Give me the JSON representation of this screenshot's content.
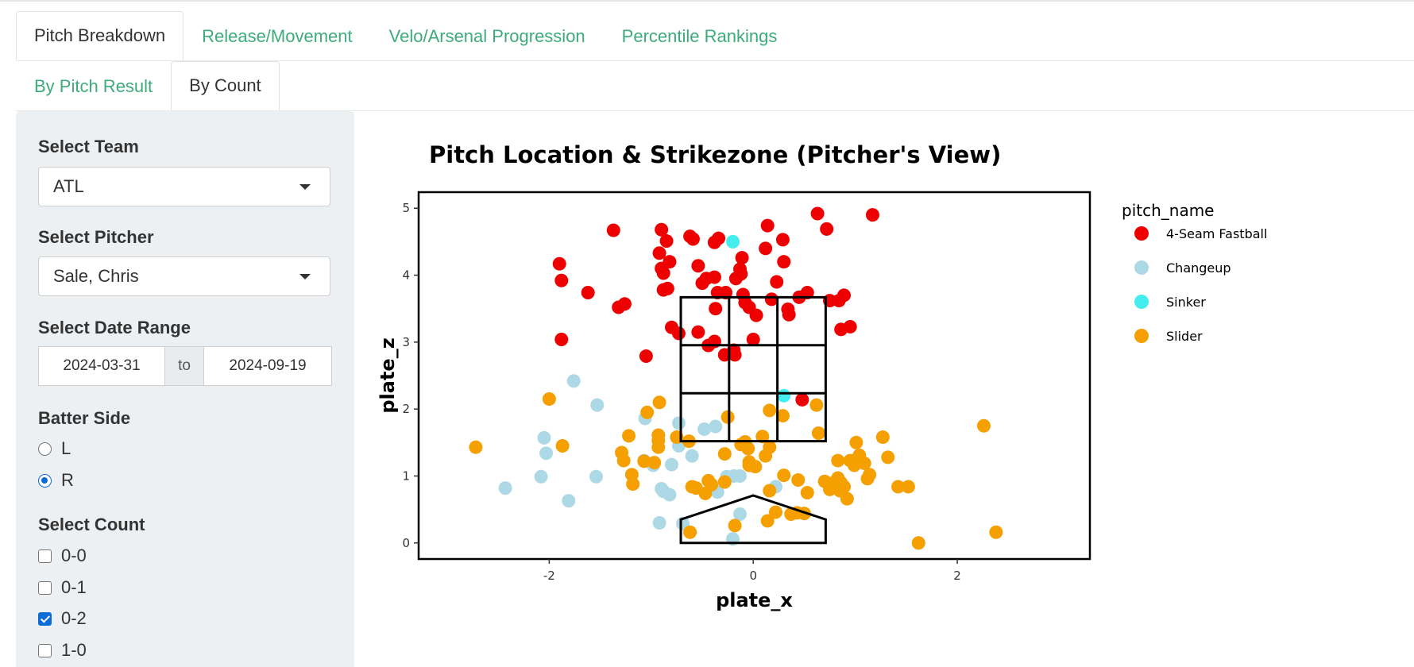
{
  "tabs": {
    "main": [
      "Pitch Breakdown",
      "Release/Movement",
      "Velo/Arsenal Progression",
      "Percentile Rankings"
    ],
    "main_active": 0,
    "sub": [
      "By Pitch Result",
      "By Count"
    ],
    "sub_active": 1
  },
  "sidebar": {
    "team": {
      "label": "Select Team",
      "value": "ATL"
    },
    "pitcher": {
      "label": "Select Pitcher",
      "value": "Sale, Chris"
    },
    "date_range": {
      "label": "Select Date Range",
      "start": "2024-03-31",
      "separator": "to",
      "end": "2024-09-19"
    },
    "batter_side": {
      "label": "Batter Side",
      "options": [
        "L",
        "R"
      ],
      "selected": "R"
    },
    "count": {
      "label": "Select Count",
      "options": [
        {
          "label": "0-0",
          "checked": false
        },
        {
          "label": "0-1",
          "checked": false
        },
        {
          "label": "0-2",
          "checked": true
        },
        {
          "label": "1-0",
          "checked": false
        }
      ]
    }
  },
  "colors": {
    "tab_link": "#3dab7c",
    "sidebar_bg": "#edf0f2",
    "accent": "#0b6cd8"
  },
  "chart_data": {
    "type": "scatter",
    "title": "Pitch Location & Strikezone (Pitcher's View)",
    "xlabel": "plate_x",
    "ylabel": "plate_z",
    "xlim": [
      -3.28,
      3.3
    ],
    "ylim": [
      -0.24,
      5.24
    ],
    "x_ticks": [
      -2,
      0,
      2
    ],
    "y_ticks": [
      0,
      1,
      2,
      3,
      4,
      5
    ],
    "grid": false,
    "legend_title": "pitch_name",
    "legend_position": "right",
    "strike_zone": {
      "x": [
        -0.71,
        0.71
      ],
      "z": [
        1.52,
        3.67
      ]
    },
    "home_plate": [
      [
        -0.71,
        0.0
      ],
      [
        0.71,
        0.0
      ],
      [
        0.71,
        0.35
      ],
      [
        0.0,
        0.71
      ],
      [
        -0.71,
        0.35
      ]
    ],
    "series": [
      {
        "name": "4-Seam Fastball",
        "color": "#ee0000",
        "points": [
          [
            -1.37,
            4.67
          ],
          [
            -1.9,
            4.17
          ],
          [
            -1.88,
            3.92
          ],
          [
            -1.62,
            3.74
          ],
          [
            -1.32,
            3.52
          ],
          [
            -1.26,
            3.57
          ],
          [
            -1.88,
            3.04
          ],
          [
            -1.05,
            2.79
          ],
          [
            -0.9,
            4.68
          ],
          [
            -0.92,
            4.33
          ],
          [
            -0.85,
            4.51
          ],
          [
            -0.88,
            4.03
          ],
          [
            -0.9,
            4.1
          ],
          [
            -0.82,
            4.2
          ],
          [
            -0.88,
            3.78
          ],
          [
            -0.84,
            3.8
          ],
          [
            -0.62,
            4.58
          ],
          [
            -0.59,
            4.54
          ],
          [
            -0.54,
            4.14
          ],
          [
            -0.5,
            3.88
          ],
          [
            -0.46,
            3.95
          ],
          [
            -0.38,
            3.97
          ],
          [
            -0.38,
            4.49
          ],
          [
            -0.34,
            4.55
          ],
          [
            -0.35,
            3.74
          ],
          [
            -0.37,
            3.5
          ],
          [
            -0.27,
            3.74
          ],
          [
            -0.17,
            3.95
          ],
          [
            -0.12,
            4.02
          ],
          [
            -0.13,
            4.09
          ],
          [
            -0.1,
            3.71
          ],
          [
            -0.08,
            3.59
          ],
          [
            -0.11,
            4.26
          ],
          [
            -0.04,
            3.52
          ],
          [
            0.03,
            3.4
          ],
          [
            0.14,
            4.74
          ],
          [
            0.12,
            4.4
          ],
          [
            0.23,
            3.9
          ],
          [
            0.29,
            4.53
          ],
          [
            0.3,
            4.2
          ],
          [
            0.34,
            3.49
          ],
          [
            0.35,
            3.41
          ],
          [
            0.18,
            3.64
          ],
          [
            0.45,
            3.67
          ],
          [
            0.53,
            3.74
          ],
          [
            0.63,
            4.92
          ],
          [
            0.72,
            4.69
          ],
          [
            0.75,
            3.62
          ],
          [
            0.84,
            3.62
          ],
          [
            0.86,
            3.19
          ],
          [
            0.89,
            3.7
          ],
          [
            0.95,
            3.23
          ],
          [
            1.17,
            4.9
          ],
          [
            -0.54,
            3.15
          ],
          [
            -0.8,
            3.22
          ],
          [
            -0.73,
            3.13
          ],
          [
            -0.44,
            2.95
          ],
          [
            -0.38,
            3.01
          ],
          [
            -0.28,
            2.81
          ],
          [
            -0.18,
            2.81
          ],
          [
            -0.19,
            2.88
          ],
          [
            0.0,
            3.04
          ],
          [
            0.48,
            2.14
          ]
        ]
      },
      {
        "name": "Changeup",
        "color": "#add8e6",
        "points": [
          [
            -2.43,
            0.82
          ],
          [
            -2.08,
            0.99
          ],
          [
            -2.05,
            1.57
          ],
          [
            -2.03,
            1.34
          ],
          [
            -1.81,
            0.63
          ],
          [
            -1.76,
            2.42
          ],
          [
            -1.53,
            2.06
          ],
          [
            -1.54,
            0.99
          ],
          [
            -1.06,
            1.86
          ],
          [
            -1.07,
            1.23
          ],
          [
            -0.98,
            1.16
          ],
          [
            -0.92,
            0.3
          ],
          [
            -0.9,
            0.81
          ],
          [
            -0.88,
            0.77
          ],
          [
            -0.82,
            0.72
          ],
          [
            -0.8,
            1.17
          ],
          [
            -0.73,
            1.45
          ],
          [
            -0.73,
            1.79
          ],
          [
            -0.69,
            0.29
          ],
          [
            -0.6,
            1.3
          ],
          [
            -0.48,
            1.7
          ],
          [
            -0.37,
            1.74
          ],
          [
            -0.35,
            0.76
          ],
          [
            -0.26,
            0.99
          ],
          [
            -0.19,
            1.0
          ],
          [
            -0.2,
            0.06
          ],
          [
            -0.13,
            1.0
          ],
          [
            -0.13,
            0.43
          ],
          [
            0.22,
            0.84
          ]
        ]
      },
      {
        "name": "Sinker",
        "color": "#44eeee",
        "points": [
          [
            -0.2,
            4.5
          ],
          [
            0.3,
            2.2
          ]
        ]
      },
      {
        "name": "Slider",
        "color": "#f5a000",
        "points": [
          [
            -2.72,
            1.43
          ],
          [
            -2.0,
            2.15
          ],
          [
            -1.87,
            1.45
          ],
          [
            -1.29,
            1.35
          ],
          [
            -1.27,
            1.23
          ],
          [
            -1.22,
            1.6
          ],
          [
            -1.19,
            1.02
          ],
          [
            -1.18,
            0.88
          ],
          [
            -1.07,
            1.22
          ],
          [
            -1.04,
            1.95
          ],
          [
            -0.97,
            1.2
          ],
          [
            -0.93,
            1.61
          ],
          [
            -0.93,
            1.53
          ],
          [
            -0.93,
            1.43
          ],
          [
            -0.92,
            2.1
          ],
          [
            -0.75,
            1.58
          ],
          [
            -0.63,
            1.52
          ],
          [
            -0.6,
            0.84
          ],
          [
            -0.56,
            0.82
          ],
          [
            -0.47,
            0.74
          ],
          [
            -0.41,
            0.87
          ],
          [
            -0.28,
            0.91
          ],
          [
            -0.28,
            1.33
          ],
          [
            -0.25,
            1.88
          ],
          [
            -0.12,
            1.47
          ],
          [
            -0.08,
            1.51
          ],
          [
            -0.05,
            1.41
          ],
          [
            -0.04,
            1.21
          ],
          [
            -0.04,
            1.16
          ],
          [
            0.02,
            1.14
          ],
          [
            0.09,
            1.59
          ],
          [
            0.12,
            1.3
          ],
          [
            0.16,
            1.43
          ],
          [
            0.16,
            1.98
          ],
          [
            0.29,
            1.9
          ],
          [
            0.3,
            1.01
          ],
          [
            0.16,
            0.78
          ],
          [
            0.22,
            0.46
          ],
          [
            0.37,
            0.43
          ],
          [
            0.44,
            0.94
          ],
          [
            0.5,
            0.44
          ],
          [
            0.53,
            0.75
          ],
          [
            0.62,
            2.06
          ],
          [
            0.64,
            1.64
          ],
          [
            0.7,
            0.92
          ],
          [
            0.75,
            0.8
          ],
          [
            0.77,
            0.89
          ],
          [
            0.83,
            0.97
          ],
          [
            0.83,
            1.23
          ],
          [
            0.85,
            0.78
          ],
          [
            0.86,
            0.9
          ],
          [
            0.89,
            0.84
          ],
          [
            0.92,
            0.66
          ],
          [
            0.95,
            1.23
          ],
          [
            0.99,
            1.16
          ],
          [
            1.01,
            1.5
          ],
          [
            1.04,
            1.31
          ],
          [
            1.09,
            1.19
          ],
          [
            1.12,
            0.96
          ],
          [
            1.14,
            1.02
          ],
          [
            1.27,
            1.58
          ],
          [
            1.32,
            1.28
          ],
          [
            1.42,
            0.84
          ],
          [
            1.52,
            0.84
          ],
          [
            1.62,
            0.0
          ],
          [
            2.26,
            1.75
          ],
          [
            2.38,
            0.16
          ],
          [
            -0.62,
            0.16
          ],
          [
            -0.18,
            0.26
          ],
          [
            0.14,
            0.33
          ],
          [
            0.43,
            0.45
          ],
          [
            -0.44,
            0.93
          ]
        ]
      }
    ]
  }
}
